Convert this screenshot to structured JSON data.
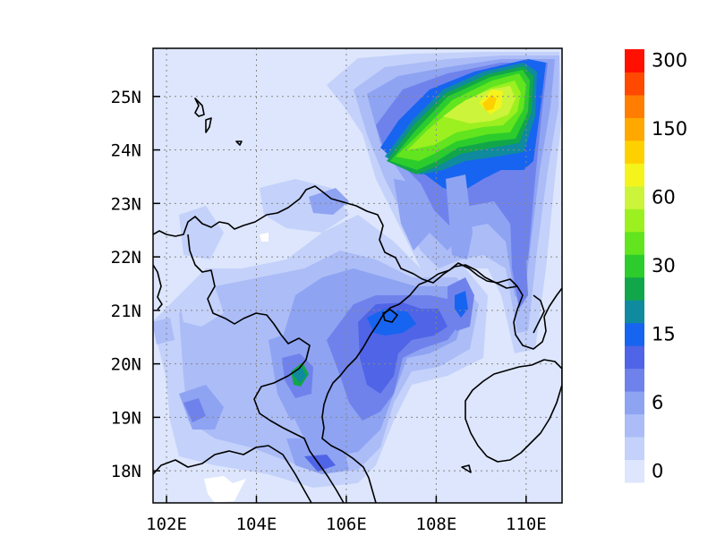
{
  "map": {
    "x_ticks": [
      {
        "value": 102,
        "label": "102E"
      },
      {
        "value": 104,
        "label": "104E"
      },
      {
        "value": 106,
        "label": "106E"
      },
      {
        "value": 108,
        "label": "108E"
      },
      {
        "value": 110,
        "label": "110E"
      }
    ],
    "y_ticks": [
      {
        "value": 18,
        "label": "18N"
      },
      {
        "value": 19,
        "label": "19N"
      },
      {
        "value": 20,
        "label": "20N"
      },
      {
        "value": 21,
        "label": "21N"
      },
      {
        "value": 22,
        "label": "22N"
      },
      {
        "value": 23,
        "label": "23N"
      },
      {
        "value": 24,
        "label": "24N"
      },
      {
        "value": 25,
        "label": "25N"
      }
    ],
    "lon_range": [
      101.7,
      110.8
    ],
    "lat_range": [
      17.4,
      25.9
    ],
    "gridlines": "dotted",
    "background_color": "#dde6fc"
  },
  "colorbar": {
    "colors": [
      "#dde6fc",
      "#c4d1fa",
      "#abbcf7",
      "#8ea3f2",
      "#6f82ec",
      "#4f64e6",
      "#1764f0",
      "#0f8a9e",
      "#12a64a",
      "#2ccc2c",
      "#62e41e",
      "#9cf020",
      "#ccf43a",
      "#f4f41c",
      "#ffd000",
      "#ffa800",
      "#ff7d00",
      "#ff4800",
      "#ff1000"
    ],
    "labels": [
      {
        "text": "0",
        "index": 0
      },
      {
        "text": "6",
        "index": 3
      },
      {
        "text": "15",
        "index": 6
      },
      {
        "text": "30",
        "index": 9
      },
      {
        "text": "60",
        "index": 12
      },
      {
        "text": "150",
        "index": 15
      },
      {
        "text": "300",
        "index": 18
      }
    ]
  }
}
